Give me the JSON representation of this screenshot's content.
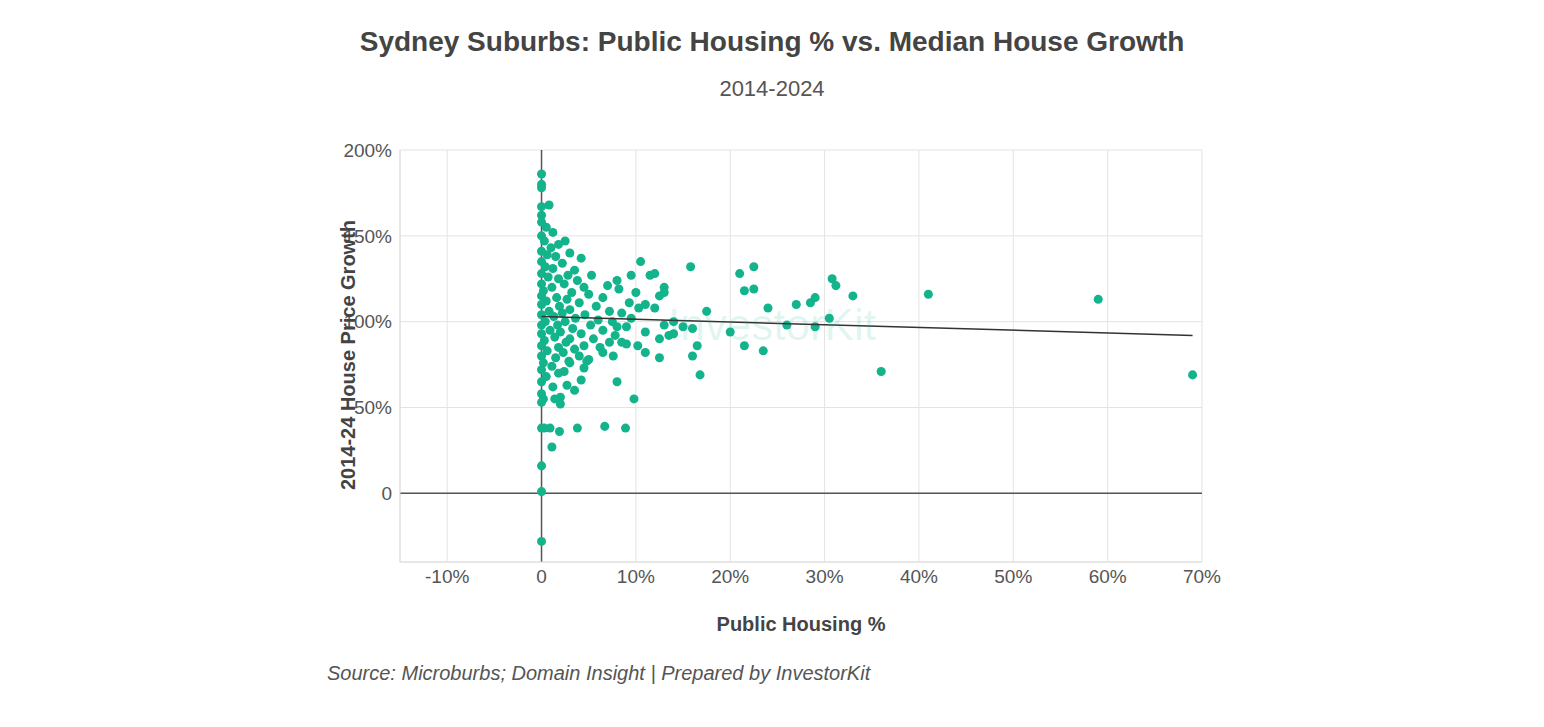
{
  "chart_data": {
    "type": "scatter",
    "title": "Sydney Suburbs: Public Housing % vs. Median House Growth",
    "subtitle": "2014-2024",
    "x_label": "Public Housing %",
    "y_label": "2014-24 House Price Growth",
    "source": "Source: Microburbs; Domain Insight | Prepared by InvestorKit",
    "annotations": [
      "InvestorKit"
    ],
    "xlim": [
      -15,
      70
    ],
    "xticks": [
      {
        "value": -10,
        "label": "-10%"
      },
      0,
      {
        "value": 10,
        "label": "10%"
      },
      {
        "value": 20,
        "label": "20%"
      },
      {
        "value": 30,
        "label": "30%"
      },
      {
        "value": 40,
        "label": "40%"
      },
      {
        "value": 50,
        "label": "50%"
      },
      {
        "value": 60,
        "label": "60%"
      },
      {
        "value": 70,
        "label": "70%"
      }
    ],
    "ylim": [
      -40,
      200
    ],
    "yticks": [
      0,
      {
        "value": 50,
        "label": "50%"
      },
      {
        "value": 100,
        "label": "100%"
      },
      {
        "value": 150,
        "label": "150%"
      },
      {
        "value": 200,
        "label": "200%"
      }
    ],
    "grid": true,
    "series": [
      {
        "type": "scatter",
        "marker": "circle",
        "color": "#13b38b",
        "x": [
          0,
          0,
          0,
          0,
          0.8,
          0,
          0,
          0.5,
          1.2,
          0,
          0.3,
          2.5,
          1.8,
          1,
          0,
          3,
          0.6,
          1.5,
          4.2,
          0,
          2.2,
          0.4,
          1.2,
          3.5,
          0,
          2.8,
          5.3,
          0.7,
          1.8,
          3.8,
          8,
          0,
          2.4,
          7,
          1.1,
          4.5,
          0.2,
          8.2,
          3.2,
          5,
          0,
          1.6,
          6.5,
          2.7,
          0.5,
          4,
          9.3,
          0,
          1.9,
          5.8,
          10.3,
          3,
          0.8,
          7.2,
          2.2,
          8.5,
          0,
          4.6,
          1.3,
          3.6,
          6,
          9.5,
          0.4,
          2.5,
          7.5,
          0,
          1.7,
          5.2,
          8,
          9,
          3.3,
          0.9,
          6.5,
          2,
          11,
          0,
          4.2,
          7.8,
          1.4,
          3,
          5.5,
          0.3,
          2.6,
          7.2,
          8.5,
          9,
          0,
          4.5,
          10.2,
          1.8,
          6.2,
          3.5,
          0.6,
          2.3,
          6.5,
          11,
          0,
          4,
          7.6,
          1.5,
          5,
          2.9,
          4.8,
          0.2,
          3,
          1.1,
          4.5,
          0,
          2.4,
          1.8,
          0.5,
          4.2,
          0,
          8,
          2.7,
          1.2,
          3.5,
          0,
          2,
          1.4,
          0.2,
          0,
          2,
          9.8,
          0,
          0.3,
          0.9,
          1.9,
          1.1,
          3.8,
          6.7,
          8.9,
          0,
          0,
          0,
          10.5,
          9.5,
          11.5,
          12,
          13,
          13,
          12.5,
          10,
          15.8,
          21,
          22.5,
          21.5,
          22.5,
          24,
          26,
          27,
          28.5,
          29,
          29,
          30.5,
          30.8,
          31.2,
          33,
          36,
          41,
          59,
          69,
          20,
          21.5,
          23.5,
          17.5,
          16,
          16.5,
          16.8,
          15,
          16,
          12.5,
          12.5,
          13.5,
          13,
          14,
          14,
          12,
          11
        ],
        "values": [
          186,
          180,
          178,
          167,
          168,
          162,
          158,
          155,
          152,
          150,
          147,
          147,
          145,
          143,
          141,
          140,
          139,
          138,
          137,
          135,
          134,
          132,
          131,
          130,
          128,
          127,
          127,
          126,
          125,
          124,
          124,
          122,
          122,
          121,
          120,
          120,
          118,
          119,
          117,
          116,
          115,
          114,
          114,
          113,
          112,
          111,
          111,
          110,
          109,
          109,
          108,
          107,
          106,
          106,
          105,
          105,
          104,
          104,
          103,
          102,
          101,
          102,
          100,
          100,
          100,
          98,
          98,
          98,
          97,
          97,
          96,
          95,
          95,
          94,
          94,
          93,
          93,
          92,
          91,
          90,
          90,
          89,
          88,
          88,
          88,
          87,
          86,
          86,
          86,
          85,
          85,
          84,
          83,
          82,
          82,
          82,
          80,
          80,
          80,
          79,
          78,
          77,
          77,
          76,
          76,
          74,
          73,
          72,
          71,
          70,
          68,
          66,
          65,
          65,
          63,
          62,
          60,
          58,
          56,
          55,
          55,
          53,
          52,
          55,
          38,
          38,
          38,
          36,
          27,
          38,
          39,
          38,
          16,
          1,
          -28,
          135,
          127,
          127,
          128,
          120,
          117,
          115,
          117,
          132,
          128,
          132,
          118,
          119,
          108,
          98,
          110,
          111,
          114,
          97,
          102,
          125,
          121,
          115,
          71,
          116,
          113,
          69,
          94,
          86,
          83,
          106,
          80,
          86,
          69,
          97,
          96,
          79,
          90,
          92,
          98,
          93,
          100,
          108,
          110
        ]
      },
      {
        "type": "line",
        "color": "#333333",
        "x": [
          0,
          69
        ],
        "values": [
          103,
          92
        ]
      }
    ]
  }
}
